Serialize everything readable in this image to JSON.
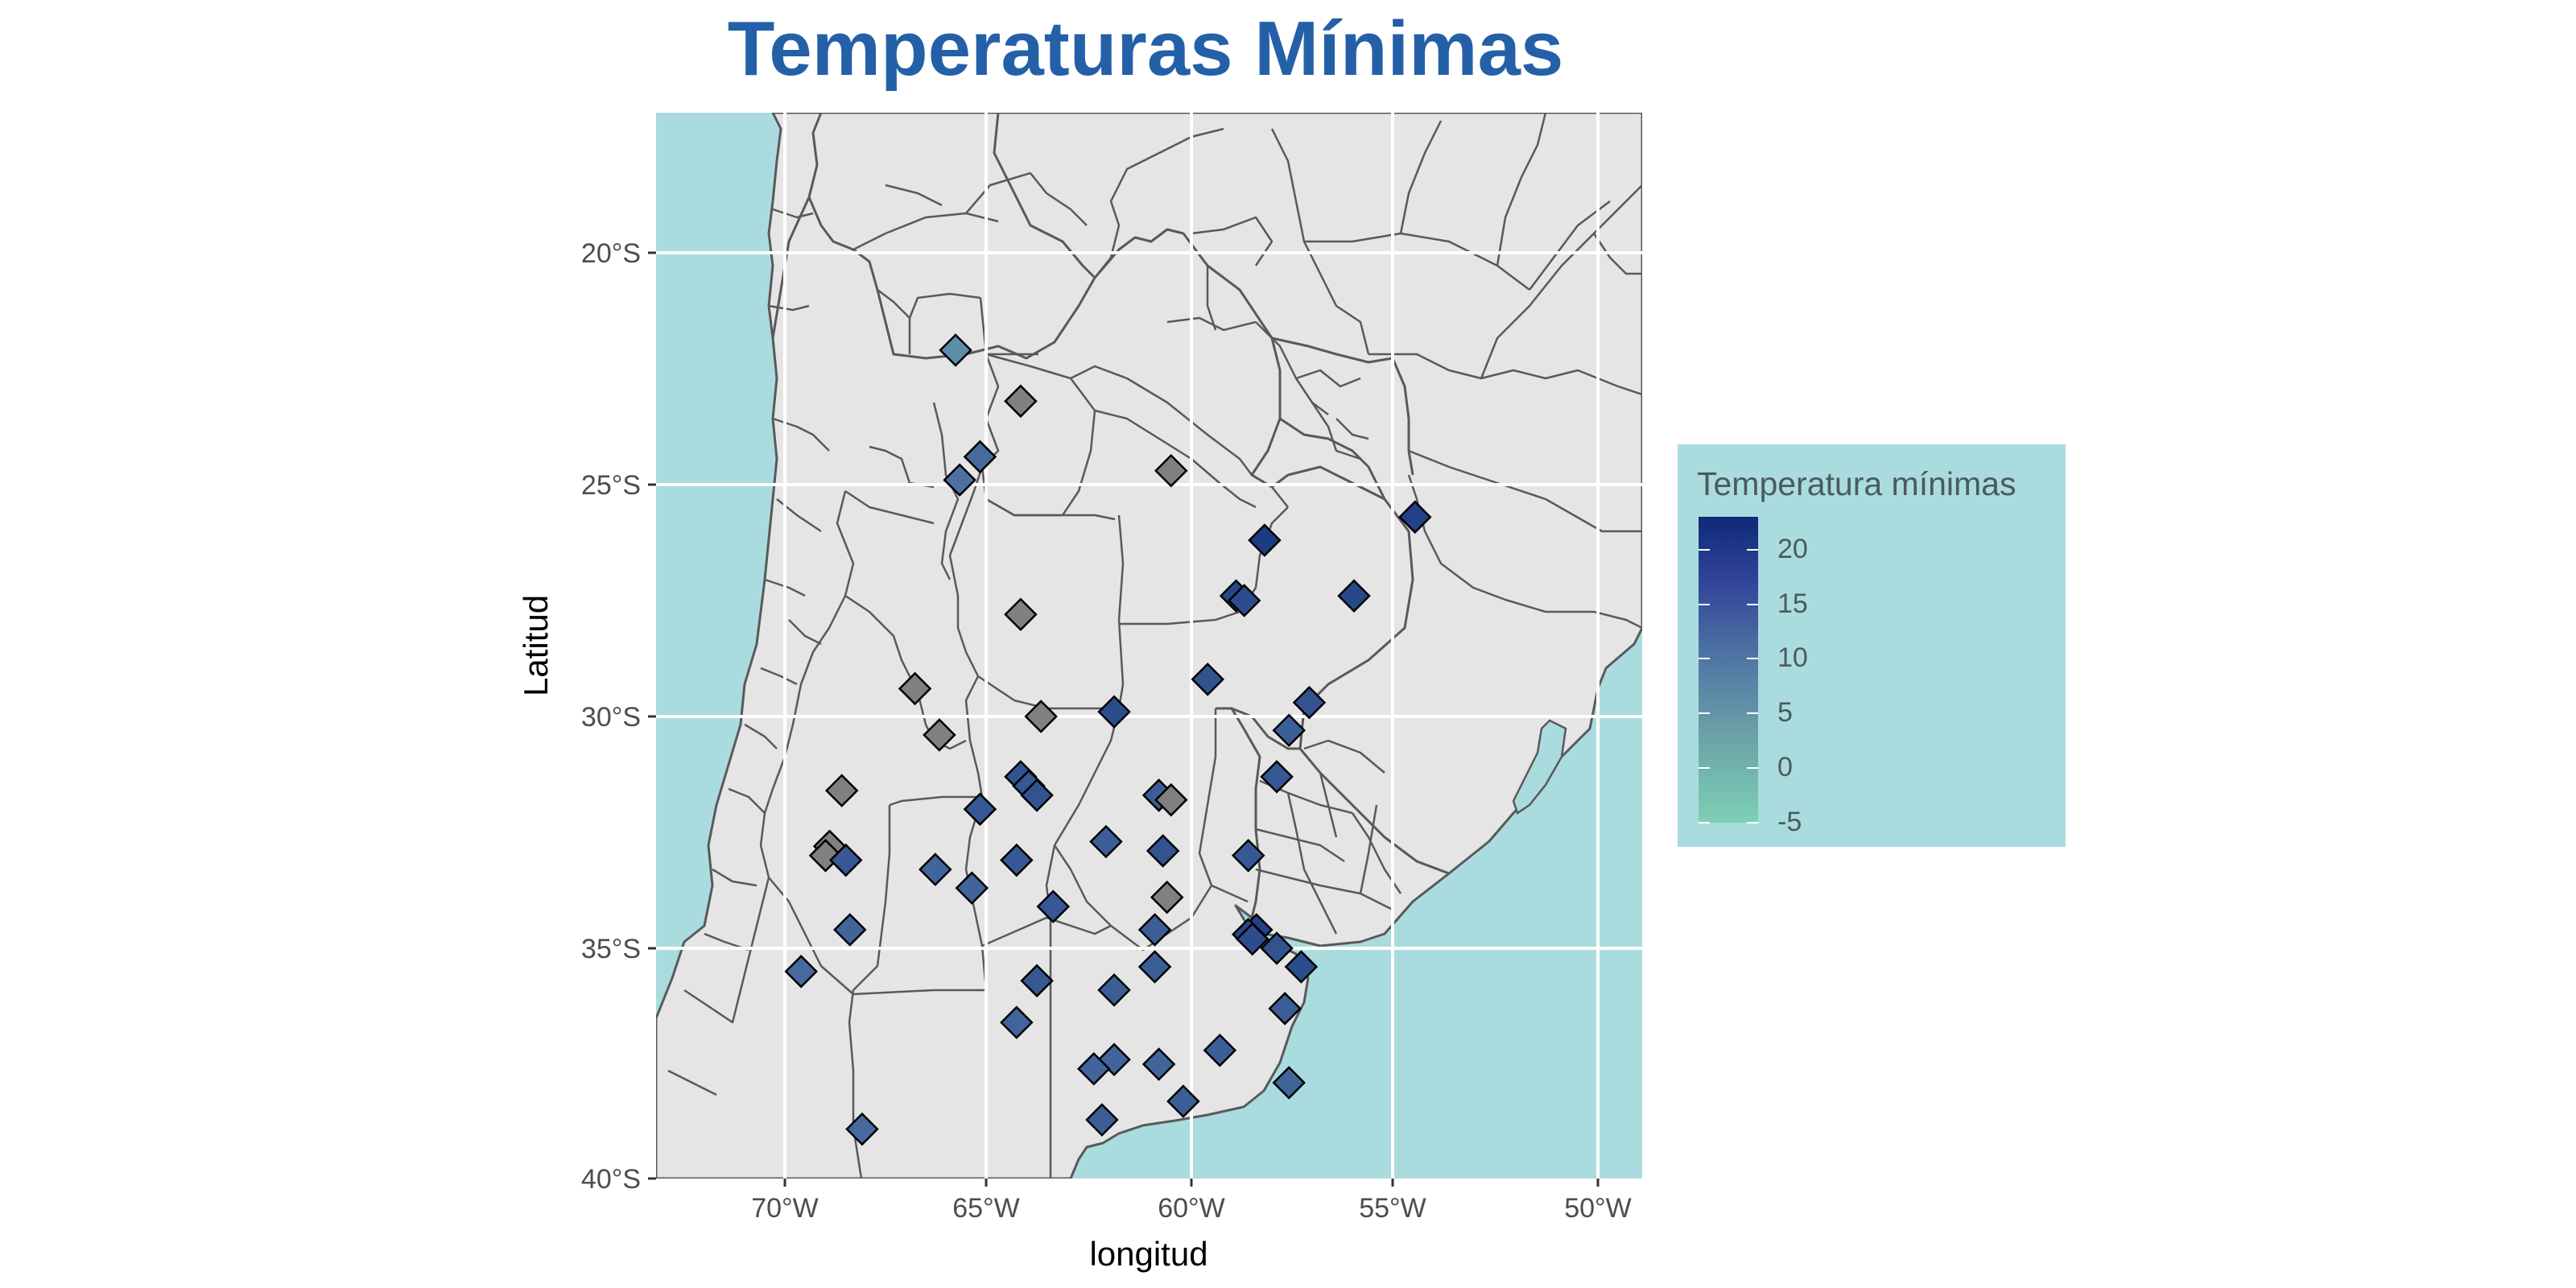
{
  "title": "Temperaturas Mínimas",
  "axes": {
    "xlabel": "longitud",
    "ylabel": "Latitud",
    "x_ticks": [
      "70°W",
      "65°W",
      "60°W",
      "55°W",
      "50°W"
    ],
    "y_ticks": [
      "20°S",
      "25°S",
      "30°S",
      "35°S",
      "40°S"
    ]
  },
  "legend": {
    "title": "Temperatura mínimas",
    "ticks": [
      "20",
      "15",
      "10",
      "5",
      "0",
      "-5"
    ]
  },
  "colors": {
    "sea": "#aadcdf",
    "land": "#e5e5e5",
    "border": "#595959",
    "title": "#2460a7",
    "na_station": "#808080",
    "scale_low": "#7ed0b5",
    "scale_high": "#0e2a78"
  },
  "chart_data": {
    "type": "scatter",
    "map_extent": {
      "lon": [
        -73.2,
        -48.9
      ],
      "lat": [
        -40.0,
        -17.0
      ]
    },
    "color_scale": {
      "min": -5,
      "max": 23
    },
    "stations": [
      {
        "lon": -65.8,
        "lat": -22.1,
        "temp": 6
      },
      {
        "lon": -64.2,
        "lat": -23.2,
        "temp": null
      },
      {
        "lon": -65.2,
        "lat": -24.4,
        "temp": 12
      },
      {
        "lon": -65.7,
        "lat": -24.9,
        "temp": 11
      },
      {
        "lon": -60.5,
        "lat": -24.7,
        "temp": null
      },
      {
        "lon": -54.5,
        "lat": -25.7,
        "temp": 19
      },
      {
        "lon": -58.2,
        "lat": -26.2,
        "temp": 20
      },
      {
        "lon": -58.9,
        "lat": -27.4,
        "temp": 18
      },
      {
        "lon": -58.7,
        "lat": -27.5,
        "temp": 17
      },
      {
        "lon": -56.0,
        "lat": -27.4,
        "temp": 18
      },
      {
        "lon": -64.2,
        "lat": -27.8,
        "temp": null
      },
      {
        "lon": -59.6,
        "lat": -29.2,
        "temp": 16
      },
      {
        "lon": -66.8,
        "lat": -29.4,
        "temp": null
      },
      {
        "lon": -63.7,
        "lat": -30.0,
        "temp": null
      },
      {
        "lon": -61.9,
        "lat": -29.9,
        "temp": 17
      },
      {
        "lon": -57.1,
        "lat": -29.7,
        "temp": 16
      },
      {
        "lon": -57.6,
        "lat": -30.3,
        "temp": 14
      },
      {
        "lon": -66.2,
        "lat": -30.4,
        "temp": null
      },
      {
        "lon": -57.9,
        "lat": -31.3,
        "temp": 15
      },
      {
        "lon": -64.2,
        "lat": -31.3,
        "temp": 16
      },
      {
        "lon": -64.0,
        "lat": -31.5,
        "temp": 15
      },
      {
        "lon": -63.8,
        "lat": -31.7,
        "temp": 16
      },
      {
        "lon": -68.6,
        "lat": -31.6,
        "temp": null
      },
      {
        "lon": -60.8,
        "lat": -31.7,
        "temp": 14
      },
      {
        "lon": -60.5,
        "lat": -31.8,
        "temp": null
      },
      {
        "lon": -65.2,
        "lat": -32.0,
        "temp": 15
      },
      {
        "lon": -62.1,
        "lat": -32.7,
        "temp": 14
      },
      {
        "lon": -68.9,
        "lat": -32.8,
        "temp": null
      },
      {
        "lon": -69.0,
        "lat": -33.0,
        "temp": null
      },
      {
        "lon": -58.6,
        "lat": -33.0,
        "temp": 15
      },
      {
        "lon": -68.5,
        "lat": -33.1,
        "temp": 15
      },
      {
        "lon": -60.7,
        "lat": -32.9,
        "temp": 16
      },
      {
        "lon": -64.3,
        "lat": -33.1,
        "temp": 15
      },
      {
        "lon": -66.3,
        "lat": -33.3,
        "temp": 13
      },
      {
        "lon": -65.4,
        "lat": -33.7,
        "temp": 13
      },
      {
        "lon": -60.6,
        "lat": -33.9,
        "temp": null
      },
      {
        "lon": -63.4,
        "lat": -34.1,
        "temp": 15
      },
      {
        "lon": -68.4,
        "lat": -34.6,
        "temp": 13
      },
      {
        "lon": -60.9,
        "lat": -34.6,
        "temp": 14
      },
      {
        "lon": -58.4,
        "lat": -34.6,
        "temp": 19
      },
      {
        "lon": -58.6,
        "lat": -34.7,
        "temp": 18
      },
      {
        "lon": -58.5,
        "lat": -34.8,
        "temp": 17
      },
      {
        "lon": -57.9,
        "lat": -35.0,
        "temp": 16
      },
      {
        "lon": -57.3,
        "lat": -35.4,
        "temp": 17
      },
      {
        "lon": -69.6,
        "lat": -35.5,
        "temp": 12
      },
      {
        "lon": -60.9,
        "lat": -35.4,
        "temp": 14
      },
      {
        "lon": -63.8,
        "lat": -35.7,
        "temp": 15
      },
      {
        "lon": -61.9,
        "lat": -35.9,
        "temp": 14
      },
      {
        "lon": -57.7,
        "lat": -36.3,
        "temp": 14
      },
      {
        "lon": -64.3,
        "lat": -36.6,
        "temp": 13
      },
      {
        "lon": -59.3,
        "lat": -37.2,
        "temp": 14
      },
      {
        "lon": -61.9,
        "lat": -37.4,
        "temp": 13
      },
      {
        "lon": -62.4,
        "lat": -37.6,
        "temp": 13
      },
      {
        "lon": -60.8,
        "lat": -37.5,
        "temp": 13
      },
      {
        "lon": -57.6,
        "lat": -37.9,
        "temp": 13
      },
      {
        "lon": -60.2,
        "lat": -38.3,
        "temp": 14
      },
      {
        "lon": -62.2,
        "lat": -38.7,
        "temp": 14
      },
      {
        "lon": -68.1,
        "lat": -38.9,
        "temp": 12
      }
    ]
  }
}
